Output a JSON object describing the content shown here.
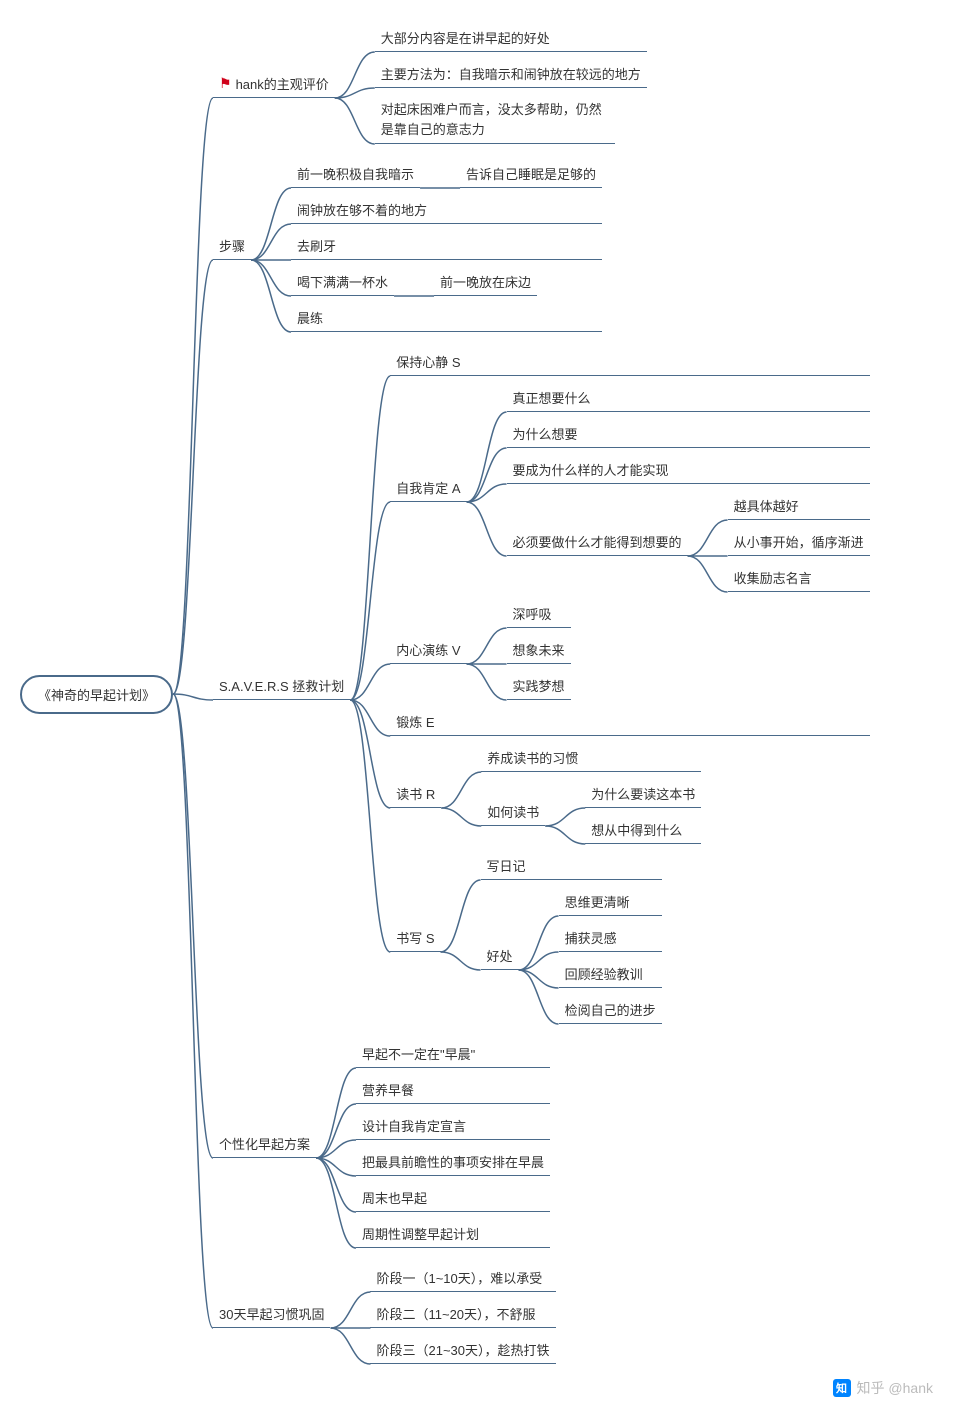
{
  "type": "mindmap",
  "colors": {
    "line": "#4a6a8a",
    "text": "#333333",
    "bg": "#ffffff",
    "flag": "#d0021b",
    "watermark": "#bbbbbb",
    "zhihu_blue": "#0084ff"
  },
  "font_size_pt": 10,
  "root": "《神奇的早起计划》",
  "watermark": {
    "icon_text": "知",
    "label": "知乎 @hank"
  },
  "nodes": {
    "b1": {
      "label": "hank的主观评价",
      "has_flag": true
    },
    "b1_1": "大部分内容是在讲早起的好处",
    "b1_2": "主要方法为：自我暗示和闹钟放在较远的地方",
    "b1_3": "对起床困难户而言，没太多帮助，仍然是靠自己的意志力",
    "b2": "步骤",
    "b2_1": "前一晚积极自我暗示",
    "b2_1_1": "告诉自己睡眠是足够的",
    "b2_2": "闹钟放在够不着的地方",
    "b2_3": "去刷牙",
    "b2_4": "喝下满满一杯水",
    "b2_4_1": "前一晚放在床边",
    "b2_5": "晨练",
    "b3": "S.A.V.E.R.S 拯救计划",
    "b3_1": "保持心静 S",
    "b3_2": "自我肯定 A",
    "b3_2_1": "真正想要什么",
    "b3_2_2": "为什么想要",
    "b3_2_3": "要成为什么样的人才能实现",
    "b3_2_4": "必须要做什么才能得到想要的",
    "b3_2_4_1": "越具体越好",
    "b3_2_4_2": "从小事开始，循序渐进",
    "b3_2_4_3": "收集励志名言",
    "b3_3": "内心演练 V",
    "b3_3_1": "深呼吸",
    "b3_3_2": "想象未来",
    "b3_3_3": "实践梦想",
    "b3_4": "锻炼 E",
    "b3_5": "读书 R",
    "b3_5_1": "养成读书的习惯",
    "b3_5_2": "如何读书",
    "b3_5_2_1": "为什么要读这本书",
    "b3_5_2_2": "想从中得到什么",
    "b3_6": "书写 S",
    "b3_6_1": "写日记",
    "b3_6_2": "好处",
    "b3_6_2_1": "思维更清晰",
    "b3_6_2_2": "捕获灵感",
    "b3_6_2_3": "回顾经验教训",
    "b3_6_2_4": "检阅自己的进步",
    "b4": "个性化早起方案",
    "b4_1": "早起不一定在\"早晨\"",
    "b4_2": "营养早餐",
    "b4_3": "设计自我肯定宣言",
    "b4_4": "把最具前瞻性的事项安排在早晨",
    "b4_5": "周末也早起",
    "b4_6": "周期性调整早起计划",
    "b5": "30天早起习惯巩固",
    "b5_1": "阶段一（1~10天），难以承受",
    "b5_2": "阶段二（11~20天），不舒服",
    "b5_3": "阶段三（21~30天），趁热打铁"
  }
}
